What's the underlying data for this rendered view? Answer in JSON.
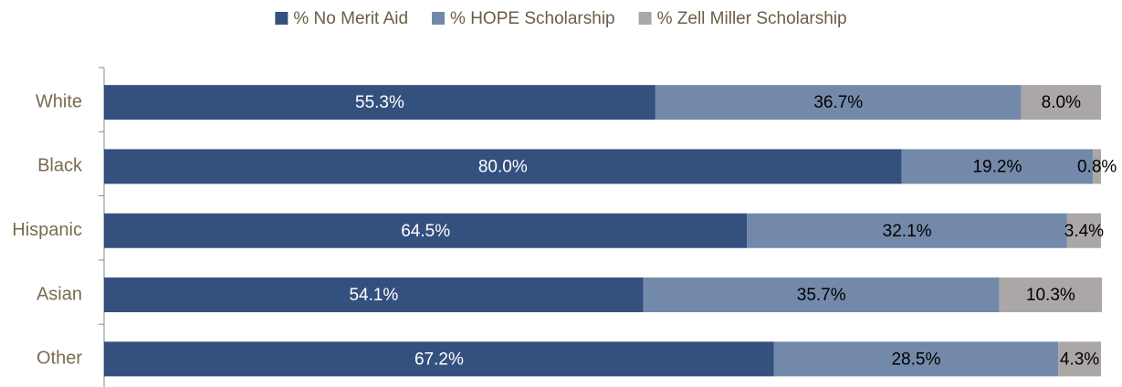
{
  "chart_data": {
    "type": "stacked-bar-horizontal",
    "categories": [
      "White",
      "Black",
      "Hispanic",
      "Asian",
      "Other"
    ],
    "series": [
      {
        "name": "% No Merit Aid",
        "color": "#34507e",
        "values": [
          55.3,
          80.0,
          64.5,
          54.1,
          67.2
        ],
        "value_labels": [
          "55.3%",
          "80.0%",
          "64.5%",
          "54.1%",
          "67.2%"
        ]
      },
      {
        "name": "% HOPE Scholarship",
        "color": "#7389aa",
        "values": [
          36.7,
          19.2,
          32.1,
          35.7,
          28.5
        ],
        "value_labels": [
          "36.7%",
          "19.2%",
          "32.1%",
          "35.7%",
          "28.5%"
        ]
      },
      {
        "name": "% Zell Miller Scholarship",
        "color": "#aaa7a6",
        "values": [
          8.0,
          0.8,
          3.4,
          10.3,
          4.3
        ],
        "value_labels": [
          "8.0%",
          "0.8%",
          "3.4%",
          "10.3%",
          "4.3%"
        ]
      }
    ],
    "xlim": [
      0,
      100
    ],
    "legend": "top"
  }
}
